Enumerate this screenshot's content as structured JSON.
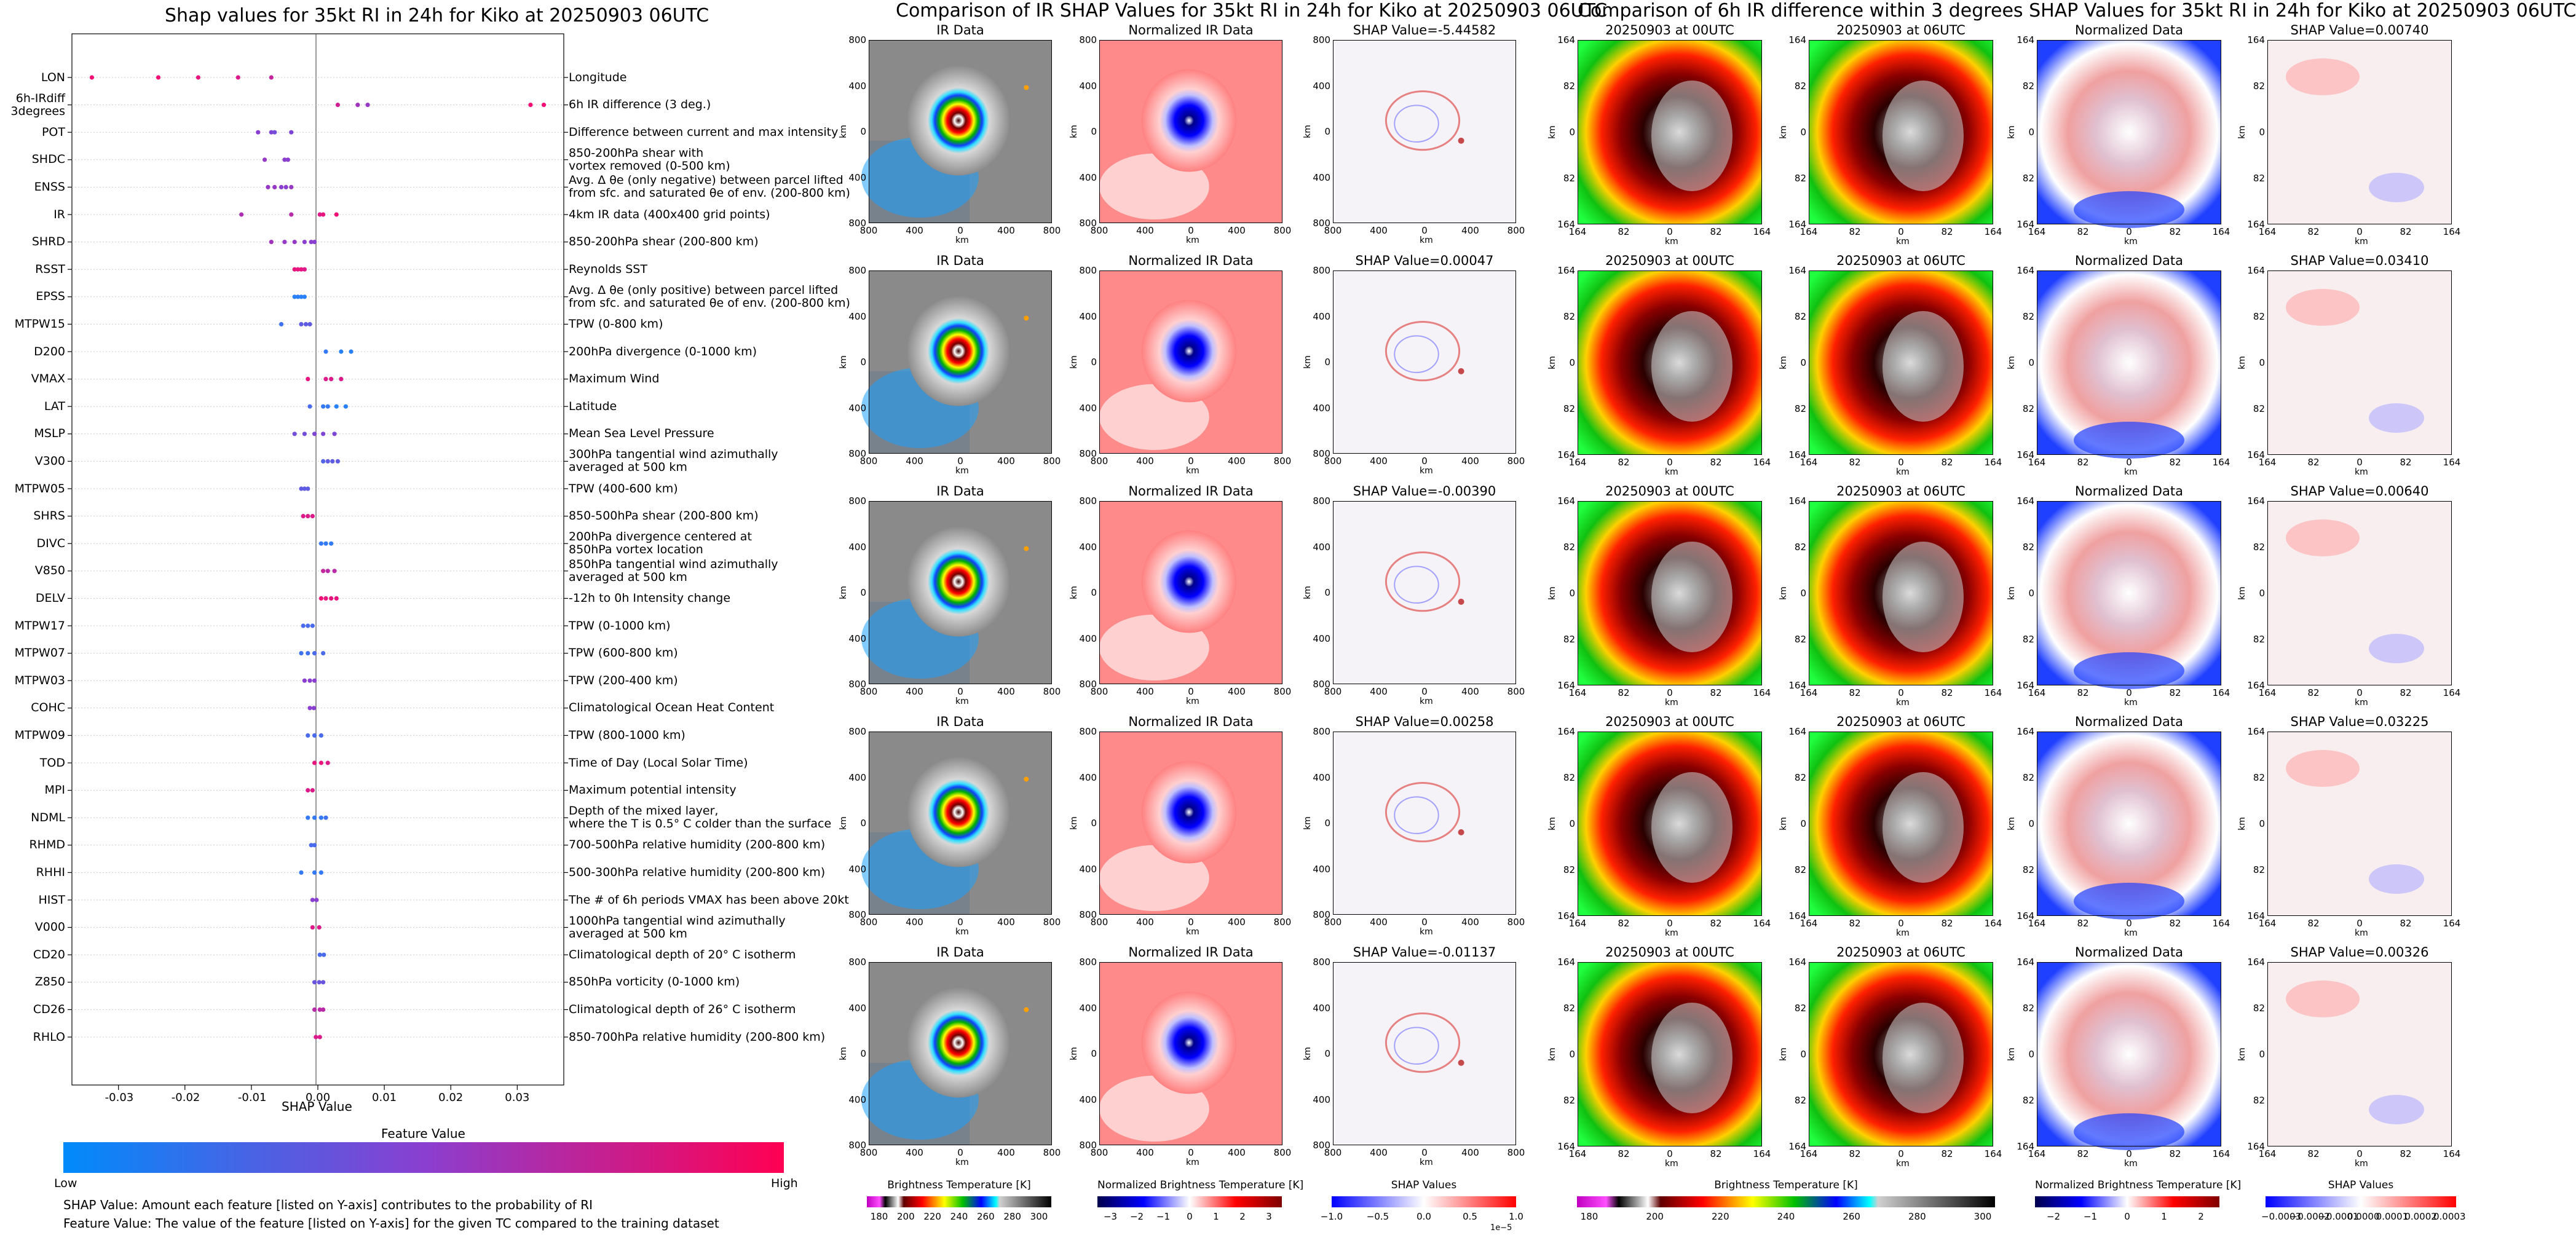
{
  "beeswarm": {
    "title": "Shap values for 35kt RI in 24h for Kiko at 20250903 06UTC",
    "xlabel": "SHAP Value",
    "xticks": [
      "-0.03",
      "-0.02",
      "-0.01",
      "0.00",
      "0.01",
      "0.02",
      "0.03"
    ],
    "colorbar_title": "Feature Value",
    "colorbar_low": "Low",
    "colorbar_high": "High",
    "note1": "SHAP Value: Amount each feature [listed on Y-axis] contributes to the probability of RI",
    "note2": "Feature Value: The value of the feature [listed on Y-axis] for the given TC compared to the training dataset"
  },
  "chart_data": [
    {
      "type": "scatter",
      "title": "Shap values for 35kt RI in 24h for Kiko at 20250903 06UTC",
      "xlabel": "SHAP Value",
      "xlim": [
        -0.037,
        0.037
      ],
      "colors": {
        "low": "#1e88ff",
        "mid": "#8a3fd0",
        "high": "#ff0a6a"
      },
      "features": [
        {
          "name": "LON",
          "description": "Longitude",
          "points": [
            [
              -0.034,
              0.95
            ],
            [
              -0.024,
              0.95
            ],
            [
              -0.018,
              0.9
            ],
            [
              -0.012,
              0.85
            ],
            [
              -0.007,
              0.75
            ]
          ]
        },
        {
          "name": "6h-IRdiff\n3degrees",
          "description": "6h IR difference (3 deg.)",
          "points": [
            [
              0.003,
              0.8
            ],
            [
              0.006,
              0.6
            ],
            [
              0.0075,
              0.55
            ],
            [
              0.032,
              0.95
            ],
            [
              0.034,
              0.95
            ]
          ]
        },
        {
          "name": "POT",
          "description": "Difference between current and max intensity",
          "points": [
            [
              -0.009,
              0.5
            ],
            [
              -0.007,
              0.45
            ],
            [
              -0.0065,
              0.4
            ],
            [
              -0.004,
              0.45
            ]
          ]
        },
        {
          "name": "SHDC",
          "description": "850-200hPa shear with\nvortex removed (0-500 km)",
          "points": [
            [
              -0.008,
              0.55
            ],
            [
              -0.005,
              0.5
            ],
            [
              -0.0045,
              0.5
            ]
          ]
        },
        {
          "name": "ENSS",
          "description": "Avg. Δ θe (only negative) between parcel lifted\nfrom sfc. and saturated θe of env. (200-800 km)",
          "points": [
            [
              -0.0075,
              0.55
            ],
            [
              -0.0065,
              0.55
            ],
            [
              -0.0055,
              0.5
            ],
            [
              -0.0048,
              0.5
            ],
            [
              -0.004,
              0.55
            ]
          ]
        },
        {
          "name": "IR",
          "description": "4km IR data (400x400 grid points)",
          "points": [
            [
              -0.0115,
              0.65
            ],
            [
              -0.004,
              0.7
            ],
            [
              0.0003,
              0.85
            ],
            [
              0.0008,
              0.9
            ],
            [
              0.0028,
              0.95
            ]
          ]
        },
        {
          "name": "SHRD",
          "description": "850-200hPa shear (200-800 km)",
          "points": [
            [
              -0.007,
              0.6
            ],
            [
              -0.005,
              0.55
            ],
            [
              -0.0035,
              0.55
            ],
            [
              -0.002,
              0.5
            ],
            [
              -0.001,
              0.5
            ],
            [
              -0.0005,
              0.5
            ]
          ]
        },
        {
          "name": "RSST",
          "description": "Reynolds SST",
          "points": [
            [
              -0.0035,
              0.9
            ],
            [
              -0.003,
              0.9
            ],
            [
              -0.0025,
              0.9
            ],
            [
              -0.002,
              0.85
            ]
          ]
        },
        {
          "name": "EPSS",
          "description": "Avg. Δ θe (only positive) between parcel lifted\nfrom sfc. and saturated θe of env. (200-800 km)",
          "points": [
            [
              -0.0035,
              0.05
            ],
            [
              -0.003,
              0.05
            ],
            [
              -0.0025,
              0.05
            ],
            [
              -0.002,
              0.05
            ]
          ]
        },
        {
          "name": "MTPW15",
          "description": "TPW (0-800 km)",
          "points": [
            [
              -0.0055,
              0.15
            ],
            [
              -0.0025,
              0.3
            ],
            [
              -0.0018,
              0.3
            ],
            [
              -0.0012,
              0.3
            ]
          ]
        },
        {
          "name": "D200",
          "description": "200hPa divergence (0-1000 km)",
          "points": [
            [
              0.0012,
              0.1
            ],
            [
              0.0035,
              0.05
            ],
            [
              0.005,
              0.05
            ]
          ]
        },
        {
          "name": "VMAX",
          "description": "Maximum Wind",
          "points": [
            [
              -0.0015,
              0.9
            ],
            [
              0.0012,
              0.85
            ],
            [
              0.002,
              0.85
            ],
            [
              0.0035,
              0.85
            ]
          ]
        },
        {
          "name": "LAT",
          "description": "Latitude",
          "points": [
            [
              -0.0012,
              0.2
            ],
            [
              0.0008,
              0.1
            ],
            [
              0.0015,
              0.1
            ],
            [
              0.0028,
              0.05
            ],
            [
              0.0042,
              0.05
            ]
          ]
        },
        {
          "name": "MSLP",
          "description": "Mean Sea Level Pressure",
          "points": [
            [
              -0.0035,
              0.4
            ],
            [
              -0.002,
              0.4
            ],
            [
              -0.0005,
              0.45
            ],
            [
              0.0008,
              0.45
            ],
            [
              0.0025,
              0.45
            ]
          ]
        },
        {
          "name": "V300",
          "description": "300hPa tangential wind azimuthally\naveraged at 500 km",
          "points": [
            [
              0.0008,
              0.25
            ],
            [
              0.0015,
              0.3
            ],
            [
              0.0022,
              0.3
            ],
            [
              0.003,
              0.3
            ]
          ]
        },
        {
          "name": "MTPW05",
          "description": "TPW (400-600 km)",
          "points": [
            [
              -0.0025,
              0.3
            ],
            [
              -0.002,
              0.3
            ],
            [
              -0.0015,
              0.3
            ]
          ]
        },
        {
          "name": "SHRS",
          "description": "850-500hPa shear (200-800 km)",
          "points": [
            [
              -0.0022,
              0.85
            ],
            [
              -0.0015,
              0.85
            ],
            [
              -0.0008,
              0.85
            ]
          ]
        },
        {
          "name": "DIVC",
          "description": "200hPa divergence centered at\n850hPa vortex location",
          "points": [
            [
              0.0005,
              0.1
            ],
            [
              0.0012,
              0.1
            ],
            [
              0.002,
              0.1
            ]
          ]
        },
        {
          "name": "V850",
          "description": "850hPa tangential wind azimuthally\naveraged at 500 km",
          "points": [
            [
              0.0008,
              0.75
            ],
            [
              0.0015,
              0.7
            ],
            [
              0.0025,
              0.7
            ]
          ]
        },
        {
          "name": "DELV",
          "description": "-12h to 0h Intensity change",
          "points": [
            [
              0.0005,
              0.95
            ],
            [
              0.0012,
              0.9
            ],
            [
              0.002,
              0.9
            ],
            [
              0.0028,
              0.9
            ]
          ]
        },
        {
          "name": "MTPW17",
          "description": "TPW (0-1000 km)",
          "points": [
            [
              -0.0022,
              0.2
            ],
            [
              -0.0015,
              0.2
            ],
            [
              -0.0008,
              0.2
            ]
          ]
        },
        {
          "name": "MTPW07",
          "description": "TPW (600-800 km)",
          "points": [
            [
              -0.0025,
              0.15
            ],
            [
              -0.0015,
              0.15
            ],
            [
              -0.0005,
              0.2
            ],
            [
              0.0008,
              0.2
            ]
          ]
        },
        {
          "name": "MTPW03",
          "description": "TPW (200-400 km)",
          "points": [
            [
              -0.002,
              0.5
            ],
            [
              -0.0012,
              0.5
            ],
            [
              -0.0005,
              0.5
            ]
          ]
        },
        {
          "name": "COHC",
          "description": "Climatological Ocean Heat Content",
          "points": [
            [
              -0.0012,
              0.5
            ],
            [
              -0.0006,
              0.5
            ]
          ]
        },
        {
          "name": "MTPW09",
          "description": "TPW (800-1000 km)",
          "points": [
            [
              -0.0015,
              0.2
            ],
            [
              -0.0005,
              0.2
            ],
            [
              0.0005,
              0.2
            ]
          ]
        },
        {
          "name": "TOD",
          "description": "Time of Day (Local Solar Time)",
          "points": [
            [
              -0.0005,
              0.9
            ],
            [
              0.0005,
              0.9
            ],
            [
              0.0015,
              0.85
            ]
          ]
        },
        {
          "name": "MPI",
          "description": "Maximum potential intensity",
          "points": [
            [
              -0.0015,
              0.85
            ],
            [
              -0.0008,
              0.85
            ]
          ]
        },
        {
          "name": "NDML",
          "description": "Depth of the mixed layer,\nwhere the T is 0.5° C colder than the surface",
          "points": [
            [
              -0.0015,
              0.1
            ],
            [
              -0.0005,
              0.1
            ],
            [
              0.0005,
              0.1
            ],
            [
              0.0012,
              0.15
            ]
          ]
        },
        {
          "name": "RHMD",
          "description": "700-500hPa relative humidity (200-800 km)",
          "points": [
            [
              -0.001,
              0.2
            ],
            [
              -0.0005,
              0.2
            ]
          ]
        },
        {
          "name": "RHHI",
          "description": "500-300hPa relative humidity (200-800 km)",
          "points": [
            [
              -0.0025,
              0.1
            ],
            [
              -0.0005,
              0.1
            ],
            [
              0.0005,
              0.1
            ]
          ]
        },
        {
          "name": "HIST",
          "description": "The # of 6h periods VMAX has been above 20kt",
          "points": [
            [
              -0.0008,
              0.5
            ],
            [
              -0.0002,
              0.5
            ]
          ]
        },
        {
          "name": "V000",
          "description": "1000hPa tangential wind azimuthally\naveraged at 500 km",
          "points": [
            [
              -0.0008,
              0.85
            ],
            [
              0.0002,
              0.85
            ]
          ]
        },
        {
          "name": "CD20",
          "description": "Climatological depth of 20° C isotherm",
          "points": [
            [
              0.0003,
              0.2
            ],
            [
              0.0009,
              0.2
            ]
          ]
        },
        {
          "name": "Z850",
          "description": "850hPa vorticity (0-1000 km)",
          "points": [
            [
              -0.0005,
              0.35
            ],
            [
              0.0002,
              0.35
            ],
            [
              0.0008,
              0.35
            ]
          ]
        },
        {
          "name": "CD26",
          "description": "Climatological depth of 26° C isotherm",
          "points": [
            [
              -0.0005,
              0.7
            ],
            [
              0.0003,
              0.7
            ],
            [
              0.0008,
              0.7
            ]
          ]
        },
        {
          "name": "RHLO",
          "description": "850-700hPa relative humidity (200-800 km)",
          "points": [
            [
              -0.0003,
              0.85
            ],
            [
              0.0003,
              0.85
            ]
          ]
        }
      ]
    }
  ],
  "mid": {
    "title": "Comparison of IR SHAP Values for 35kt RI in 24h for Kiko at 20250903 06UTC",
    "col_titles": [
      "IR Data",
      "Normalized IR Data"
    ],
    "shap_titles": [
      "SHAP Value=-5.44582",
      "SHAP Value=0.00047",
      "SHAP Value=-0.00390",
      "SHAP Value=0.00258",
      "SHAP Value=-0.01137"
    ],
    "ticks": [
      "800",
      "400",
      "0",
      "400",
      "800"
    ],
    "axis_label": "km",
    "cbar1_title": "Brightness Temperature [K]",
    "cbar1_ticks": [
      "180",
      "200",
      "220",
      "240",
      "260",
      "280",
      "300"
    ],
    "cbar2_title": "Normalized Brightness Temperature [K]",
    "cbar2_ticks": [
      "−3",
      "−2",
      "−1",
      "0",
      "1",
      "2",
      "3"
    ],
    "cbar3_title": "SHAP Values",
    "cbar3_ticks": [
      "−1.0",
      "−0.5",
      "0.0",
      "0.5",
      "1.0"
    ],
    "cbar3_exp": "1e−5"
  },
  "right": {
    "title": "Comparison of 6h IR difference within 3 degrees SHAP Values for 35kt RI in 24h for Kiko at 20250903 06UTC",
    "col_titles": [
      "20250903 at 00UTC",
      "20250903 at 06UTC",
      "Normalized Data"
    ],
    "shap_titles": [
      "SHAP Value=0.00740",
      "SHAP Value=0.03410",
      "SHAP Value=0.00640",
      "SHAP Value=0.03225",
      "SHAP Value=0.00326"
    ],
    "ticks": [
      "164",
      "82",
      "0",
      "82",
      "164"
    ],
    "axis_label": "km",
    "cbar1_title": "Brightness Temperature [K]",
    "cbar1_ticks": [
      "180",
      "200",
      "220",
      "240",
      "260",
      "280",
      "300"
    ],
    "cbar2_title": "Normalized Brightness Temperature [K]",
    "cbar2_ticks": [
      "−2",
      "−1",
      "0",
      "1",
      "2"
    ],
    "cbar3_title": "SHAP Values",
    "cbar3_ticks": [
      "−0.0003",
      "−0.0002",
      "−0.0001",
      "0.0000",
      "0.0001",
      "0.0002",
      "0.0003"
    ]
  }
}
